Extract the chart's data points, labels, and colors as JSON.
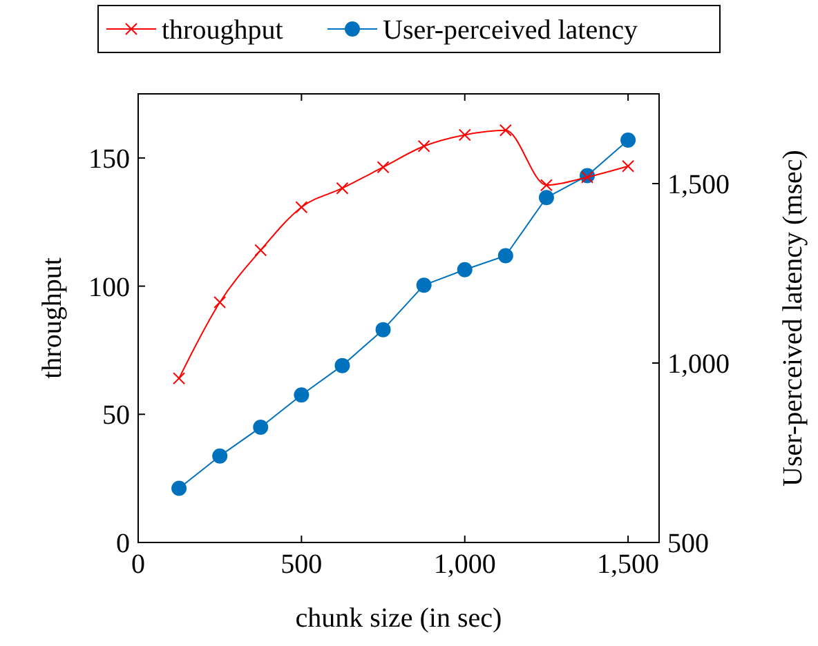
{
  "chart_data": {
    "type": "line",
    "xlabel": "chunk size (in sec)",
    "ylabel": "throughput",
    "y2label": "User-perceived latency (msec)",
    "x": [
      125,
      250,
      375,
      500,
      625,
      750,
      875,
      1000,
      1125,
      1250,
      1375,
      1500
    ],
    "xlim": [
      0,
      1595
    ],
    "xticks": [
      0,
      500,
      {
        "value": 1000,
        "label": "1,000"
      },
      {
        "value": 1500,
        "label": "1,500"
      }
    ],
    "ylim": [
      0,
      175
    ],
    "yticks": [
      0,
      50,
      100,
      150
    ],
    "y2lim": [
      500,
      1750
    ],
    "y2ticks": [
      500,
      {
        "value": 1000,
        "label": "1,000"
      },
      {
        "value": 1500,
        "label": "1,500"
      }
    ],
    "legend": "top",
    "grid": false,
    "series": [
      {
        "name": "throughput",
        "color": "#ff0000",
        "marker": "cross",
        "values": [
          64,
          93.7,
          114,
          130.8,
          138.2,
          146.4,
          154.6,
          159,
          160.8,
          139.4,
          142.5,
          146.8
        ]
      },
      {
        "name": "User-perceived latency",
        "color": "#0072bd",
        "marker": "circle",
        "axis": "y2",
        "values": [
          651,
          741,
          821,
          911,
          993,
          1093,
          1217,
          1260,
          1299,
          1461,
          1522,
          1621
        ]
      }
    ]
  }
}
